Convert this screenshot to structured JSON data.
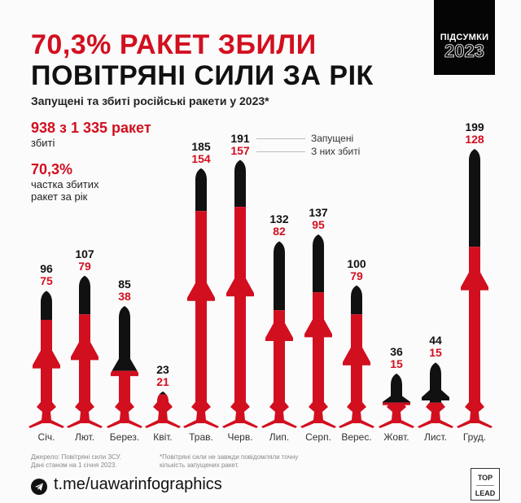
{
  "header": {
    "title_line1": "70,3% РАКЕТ ЗБИЛИ",
    "title_line2": "ПОВІТРЯНІ СИЛИ ЗА РІК",
    "subtitle": "Запущені та збиті російські ракети у 2023*",
    "badge_top": "ПІДСУМКИ",
    "badge_year": "2023"
  },
  "stats": {
    "total_big": "938 з 1 335 ракет",
    "total_small": "збиті",
    "share_big": "70,3%",
    "share_small_1": "частка збитих",
    "share_small_2": "ракет за рік"
  },
  "legend": {
    "launched": "Запущені",
    "downed": "З них збиті"
  },
  "colors": {
    "red": "#d20f1f",
    "black": "#111111",
    "background": "#fbfbfb"
  },
  "chart_data": {
    "type": "bar",
    "title": "Запущені та збиті російські ракети у 2023*",
    "categories": [
      "Січ.",
      "Лют.",
      "Берез.",
      "Квіт.",
      "Трав.",
      "Черв.",
      "Лип.",
      "Серп.",
      "Верес.",
      "Жовт.",
      "Лист.",
      "Груд."
    ],
    "series": [
      {
        "name": "Запущені",
        "color": "#111111",
        "values": [
          96,
          107,
          85,
          23,
          185,
          191,
          132,
          137,
          100,
          36,
          44,
          199
        ]
      },
      {
        "name": "З них збиті",
        "color": "#d20f1f",
        "values": [
          75,
          79,
          38,
          21,
          154,
          157,
          82,
          95,
          79,
          15,
          15,
          128
        ]
      }
    ],
    "xlabel": "",
    "ylabel": "",
    "ylim": [
      0,
      199
    ],
    "grid": false,
    "legend_position": "top-center (inline labels)",
    "annotations": [
      "938 з 1 335 ракет збиті",
      "70,3% частка збитих ракет за рік"
    ]
  },
  "footer": {
    "source_1": "Джерело: Повітряні сили ЗСУ.",
    "source_2": "Дані станом на 1 січня 2023.",
    "note_1": "*Повітряні сили не завжди повідомляли точну",
    "note_2": "кількість запущених ракет.",
    "telegram_url": "t.me/uawarinfographics",
    "logo_top": "TOP",
    "logo_bottom": "LEAD"
  }
}
